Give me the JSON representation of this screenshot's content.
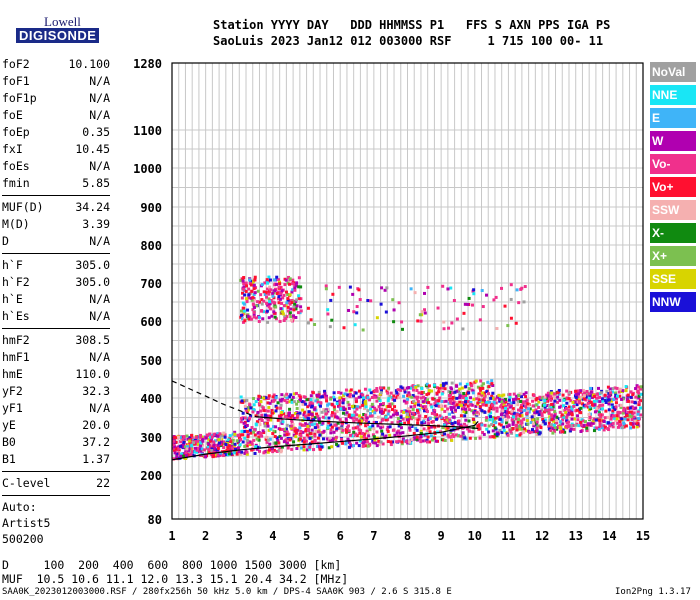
{
  "logo": {
    "line1": "Lowell",
    "line2": "DIGISONDE"
  },
  "header": {
    "row1": "Station YYYY DAY   DDD HHMMSS P1   FFS S AXN PPS IGA PS",
    "row2": "SaoLuis 2023 Jan12 012 003000 RSF     1 715 100 00- 11"
  },
  "params": [
    {
      "k": "foF2",
      "v": "10.100"
    },
    {
      "k": "foF1",
      "v": "N/A"
    },
    {
      "k": "foF1p",
      "v": "N/A"
    },
    {
      "k": "foE",
      "v": "N/A"
    },
    {
      "k": "foEp",
      "v": "0.35"
    },
    {
      "k": "fxI",
      "v": "10.45"
    },
    {
      "k": "foEs",
      "v": "N/A"
    },
    {
      "k": "fmin",
      "v": "5.85"
    },
    {
      "sep": true
    },
    {
      "k": "MUF(D)",
      "v": "34.24"
    },
    {
      "k": "M(D)",
      "v": "3.39"
    },
    {
      "k": "D",
      "v": "N/A"
    },
    {
      "sep": true
    },
    {
      "k": "h`F",
      "v": "305.0"
    },
    {
      "k": "h`F2",
      "v": "305.0"
    },
    {
      "k": "h`E",
      "v": "N/A"
    },
    {
      "k": "h`Es",
      "v": "N/A"
    },
    {
      "sep": true
    },
    {
      "k": "hmF2",
      "v": "308.5"
    },
    {
      "k": "hmF1",
      "v": "N/A"
    },
    {
      "k": "hmE",
      "v": "110.0"
    },
    {
      "k": "yF2",
      "v": "32.3"
    },
    {
      "k": "yF1",
      "v": "N/A"
    },
    {
      "k": "yE",
      "v": "20.0"
    },
    {
      "k": "B0",
      "v": "37.2"
    },
    {
      "k": "B1",
      "v": "1.37"
    },
    {
      "sep": true
    },
    {
      "k": "C-level",
      "v": "22"
    },
    {
      "sep": true
    }
  ],
  "auto": [
    "Auto:",
    "Artist5",
    "500200"
  ],
  "legend": [
    {
      "label": "NoVal",
      "color": "#a0a0a0"
    },
    {
      "label": "NNE",
      "color": "#19e6f5"
    },
    {
      "label": "E",
      "color": "#3fb4f8"
    },
    {
      "label": "W",
      "color": "#b000b0"
    },
    {
      "label": "Vo-",
      "color": "#f0308c"
    },
    {
      "label": "Vo+",
      "color": "#ff1030"
    },
    {
      "label": "SSW",
      "color": "#f5b0b0"
    },
    {
      "label": "X-",
      "color": "#108a10"
    },
    {
      "label": "X+",
      "color": "#7cc050"
    },
    {
      "label": "SSE",
      "color": "#d8d400"
    },
    {
      "label": "NNW",
      "color": "#1a10d8"
    }
  ],
  "footer": {
    "line1": "D     100  200  400  600  800 1000 1500 3000 [km]",
    "line2": "MUF  10.5 10.6 11.1 12.0 13.3 15.1 20.4 34.2 [MHz]",
    "line3": "SAA0K_2023012003000.RSF / 280fx256h 50 kHz 5.0 km / DPS-4 SAA0K 903 / 2.6 S 315.8 E",
    "version": "Ion2Png 1.3.17"
  },
  "chart_data": {
    "type": "scatter",
    "x_ticks": [
      1,
      2,
      3,
      4,
      5,
      6,
      7,
      8,
      9,
      10,
      11,
      12,
      13,
      14,
      15
    ],
    "y_ticks": [
      80,
      200,
      300,
      400,
      500,
      600,
      700,
      800,
      900,
      1000,
      1100,
      1280
    ],
    "xlim": [
      1,
      15
    ],
    "ylim": [
      80,
      1280
    ],
    "y_scale": "nonlinear",
    "grid": true,
    "legend_position": "right",
    "series": [
      {
        "name": "trace",
        "color": "#000000",
        "x": [
          1.0,
          2.0,
          3.0,
          4.0,
          5.0,
          6.0,
          7.0,
          8.0,
          9.0,
          10.0,
          10.1
        ],
        "y": [
          240,
          255,
          266,
          274,
          281,
          288,
          295,
          303,
          312,
          330,
          340
        ]
      },
      {
        "name": "profile",
        "color": "#000000",
        "style": "dashed",
        "x": [
          1.0,
          1.5,
          2.0,
          2.5,
          3.0,
          3.5
        ],
        "y": [
          445,
          425,
          405,
          385,
          368,
          352
        ]
      },
      {
        "name": "profile",
        "color": "#000000",
        "x": [
          3.5,
          4.5,
          5.5,
          6.5,
          7.5,
          8.5,
          9.5,
          10.1
        ],
        "y": [
          352,
          345,
          340,
          336,
          333,
          330,
          326,
          322
        ]
      }
    ]
  }
}
